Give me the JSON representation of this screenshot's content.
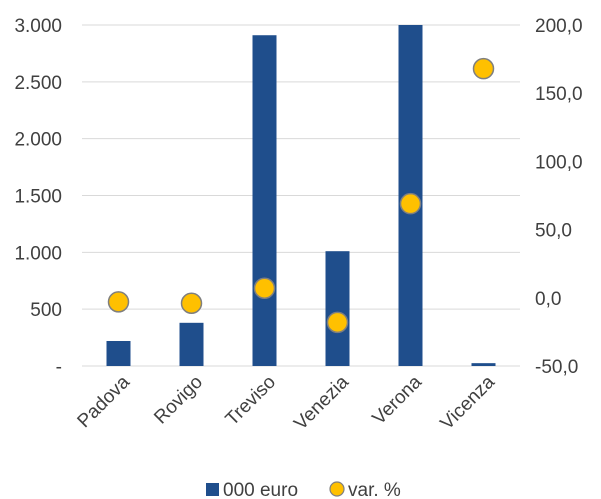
{
  "chart_data": {
    "type": "bar",
    "categories": [
      "Padova",
      "Rovigo",
      "Treviso",
      "Venezia",
      "Verona",
      "Vicenza"
    ],
    "series": [
      {
        "name": "000 euro",
        "type": "bar",
        "axis": "left",
        "color": "#1f4e8c",
        "values": [
          220,
          380,
          2910,
          1010,
          3000,
          25
        ]
      },
      {
        "name": "var. %",
        "type": "scatter",
        "axis": "right",
        "color": "#ffc000",
        "stroke": "#7f7f7f",
        "values": [
          -3,
          -4,
          7,
          -18,
          69,
          168
        ]
      }
    ],
    "y_left": {
      "ylim": [
        0,
        3000
      ],
      "ticks": [
        0,
        500,
        1000,
        1500,
        2000,
        2500,
        3000
      ],
      "tick_labels": [
        "-",
        "500",
        "1.000",
        "1.500",
        "2.000",
        "2.500",
        "3.000"
      ]
    },
    "y_right": {
      "ylim": [
        -50,
        200
      ],
      "ticks": [
        -50,
        0,
        50,
        100,
        150,
        200
      ],
      "tick_labels": [
        "-50,0",
        "0,0",
        "50,0",
        "100,0",
        "150,0",
        "200,0"
      ]
    },
    "grid": true,
    "legend": {
      "position": "bottom",
      "items": [
        "000 euro",
        "var. %"
      ]
    }
  }
}
